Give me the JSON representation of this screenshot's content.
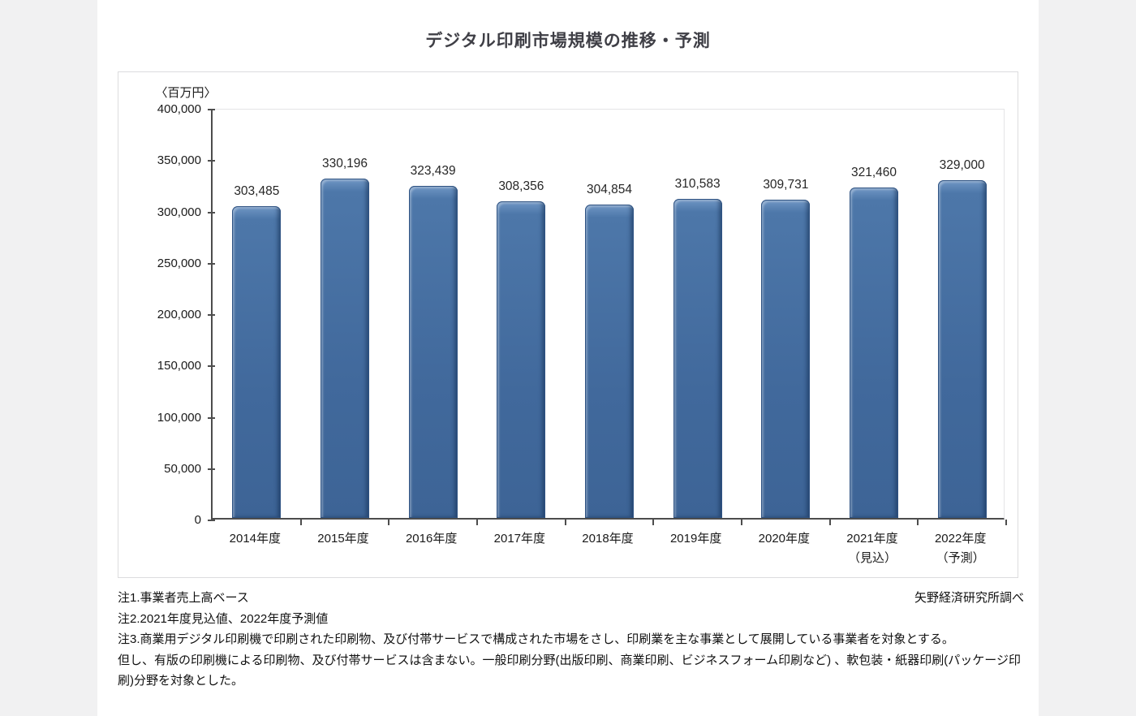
{
  "title": "デジタル印刷市場規模の推移・予測",
  "credit": "矢野経済研究所調べ",
  "notes": {
    "note1": "注1.事業者売上高ベース",
    "note2": "注2.2021年度見込値、2022年度予測値",
    "note3": "注3.商業用デジタル印刷機で印刷された印刷物、及び付帯サービスで構成された市場をさし、印刷業を主な事業として展開している事業者を対象とする。",
    "note4": "但し、有版の印刷機による印刷物、及び付帯サービスは含まない。一般印刷分野(出版印刷、商業印刷、ビジネスフォーム印刷など) 、軟包装・紙器印刷(パッケージ印刷)分野を対象とした。"
  },
  "chart_data": {
    "type": "bar",
    "title": "デジタル印刷市場規模の推移・予測",
    "unit_label": "〈百万円〉",
    "categories": [
      "2014年度",
      "2015年度",
      "2016年度",
      "2017年度",
      "2018年度",
      "2019年度",
      "2020年度",
      "2021年度",
      "2022年度"
    ],
    "category_sublabels": [
      "",
      "",
      "",
      "",
      "",
      "",
      "",
      "（見込）",
      "（予測）"
    ],
    "values": [
      303485,
      330196,
      323439,
      308356,
      304854,
      310583,
      309731,
      321460,
      329000
    ],
    "value_labels": [
      "303,485",
      "330,196",
      "323,439",
      "308,356",
      "304,854",
      "310,583",
      "309,731",
      "321,460",
      "329,000"
    ],
    "ylim": [
      0,
      400000
    ],
    "ytick_interval": 50000,
    "grid": false,
    "legend": "none",
    "colors": {
      "bar_fill": "#41699c",
      "bar_edge": "#2e5282",
      "bar_highlight": "#7097c5",
      "axis": "#4d4d4d",
      "title_text": "#3f3f46"
    }
  }
}
